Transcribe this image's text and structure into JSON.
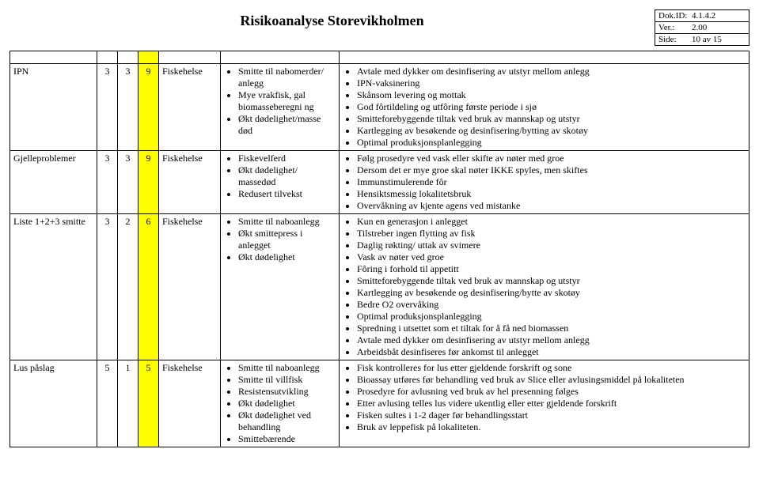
{
  "doc": {
    "title": "Risikoanalyse Storevikholmen",
    "meta": {
      "dokid_label": "Dok.ID:",
      "dokid": "4.1.4.2",
      "ver_label": "Ver.:",
      "ver": "2.00",
      "side_label": "Side:",
      "side": "10 av 15"
    }
  },
  "columns": {
    "yellow_bg": "#ffff00"
  },
  "rows": [
    {
      "name": "IPN",
      "s": "3",
      "k": "3",
      "r": "9",
      "cat": "Fiskehelse",
      "consequences": [
        "Smitte til nabomerder/ anlegg",
        "Mye vrakfisk, gal biomasseberegni ng",
        "Økt dødelighet/masse død"
      ],
      "actions": [
        "Avtale med dykker om desinfisering av utstyr mellom anlegg",
        "IPN-vaksinering",
        "Skånsom levering og mottak",
        "God fôrtildeling og utfôring første periode i sjø",
        "Smitteforebyggende tiltak ved bruk av mannskap og utstyr",
        "Kartlegging av besøkende og desinfisering/bytting av skotøy",
        "Optimal produksjonsplanlegging"
      ]
    },
    {
      "name": "Gjelleproblemer",
      "s": "3",
      "k": "3",
      "r": "9",
      "cat": "Fiskehelse",
      "consequences": [
        "Fiskevelferd",
        "Økt dødelighet/ massedød",
        "Redusert tilvekst"
      ],
      "actions": [
        "Følg prosedyre ved vask eller skifte av nøter med groe",
        "Dersom det er mye groe skal nøter IKKE spyles, men skiftes",
        "Immunstimulerende fôr",
        "Hensiktsmessig lokalitetsbruk",
        "Overvåkning av kjente agens ved mistanke"
      ]
    },
    {
      "name": "Liste 1+2+3 smitte",
      "s": "3",
      "k": "2",
      "r": "6",
      "cat": "Fiskehelse",
      "consequences": [
        "Smitte til naboanlegg",
        "Økt smittepress i anlegget",
        "Økt dødelighet"
      ],
      "actions": [
        "Kun en generasjon i anlegget",
        "Tilstreber ingen flytting av fisk",
        "Daglig røkting/ uttak av svimere",
        "Vask av nøter ved groe",
        "Fôring i forhold til appetitt",
        "Smitteforebyggende tiltak ved bruk av mannskap og utstyr",
        "Kartlegging av besøkende og desinfisering/bytte av skotøy",
        "Bedre O2 overvåking",
        "Optimal produksjonsplanlegging",
        "Spredning i utsettet som et tiltak for å få ned biomassen",
        "Avtale med dykker om desinfisering av utstyr mellom anlegg",
        "Arbeidsbåt desinfiseres før ankomst til anlegget"
      ]
    },
    {
      "name": "Lus påslag",
      "s": "5",
      "k": "1",
      "r": "5",
      "cat": "Fiskehelse",
      "consequences": [
        "Smitte til naboanlegg",
        "Smitte til villfisk",
        "Resistensutvikling",
        "Økt dødelighet",
        "Økt dødelighet ved behandling",
        "Smittebærende"
      ],
      "actions": [
        "Fisk kontrolleres for lus etter gjeldende forskrift og sone",
        "Bioassay utføres før behandling ved bruk av Slice eller avlusingsmiddel på lokaliteten",
        "Prosedyre for avlusning ved bruk av hel presenning følges",
        "Etter avlusing telles lus videre ukentlig eller etter gjeldende forskrift",
        "Fisken sultes i 1-2 dager før behandlingsstart",
        "Bruk av leppefisk på lokaliteten."
      ]
    }
  ]
}
